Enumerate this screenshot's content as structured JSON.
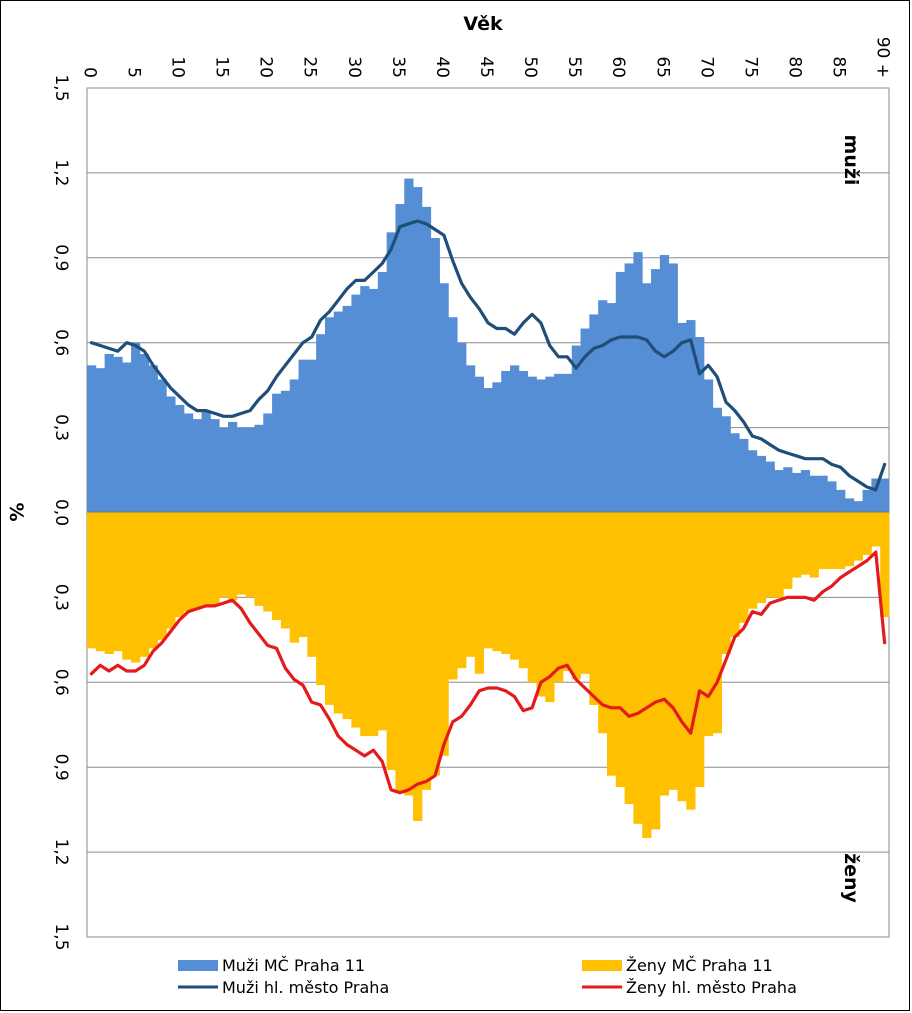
{
  "chart_data": {
    "type": "bar",
    "orientation": "population pyramid, rotated (age runs left to right along the top, percent downward)",
    "age_axis_title": "Věk",
    "value_axis_title": "%",
    "age_ticks": [
      "0",
      "5",
      "10",
      "15",
      "20",
      "25",
      "30",
      "35",
      "40",
      "45",
      "50",
      "55",
      "60",
      "65",
      "70",
      "75",
      "80",
      "85",
      "90 +"
    ],
    "value_ticks": [
      "1,5",
      "1,2",
      "0,9",
      "0,6",
      "0,3",
      "0,0",
      "0,3",
      "0,6",
      "0,9",
      "1,2",
      "1,5"
    ],
    "value_range": [
      -1.5,
      1.5
    ],
    "section_labels": {
      "upper": "muži",
      "lower": "ženy"
    },
    "grid": true,
    "legend_position": "bottom",
    "ages": [
      0,
      1,
      2,
      3,
      4,
      5,
      6,
      7,
      8,
      9,
      10,
      11,
      12,
      13,
      14,
      15,
      16,
      17,
      18,
      19,
      20,
      21,
      22,
      23,
      24,
      25,
      26,
      27,
      28,
      29,
      30,
      31,
      32,
      33,
      34,
      35,
      36,
      37,
      38,
      39,
      40,
      41,
      42,
      43,
      44,
      45,
      46,
      47,
      48,
      49,
      50,
      51,
      52,
      53,
      54,
      55,
      56,
      57,
      58,
      59,
      60,
      61,
      62,
      63,
      64,
      65,
      66,
      67,
      68,
      69,
      70,
      71,
      72,
      73,
      74,
      75,
      76,
      77,
      78,
      79,
      80,
      81,
      82,
      83,
      84,
      85,
      86,
      87,
      88,
      89,
      90
    ],
    "series": [
      {
        "name": "Muži MČ Praha 11",
        "kind": "bar",
        "color": "#558ED5",
        "values": [
          0.52,
          0.51,
          0.56,
          0.55,
          0.53,
          0.6,
          0.56,
          0.52,
          0.47,
          0.41,
          0.38,
          0.35,
          0.33,
          0.36,
          0.33,
          0.3,
          0.32,
          0.3,
          0.3,
          0.31,
          0.35,
          0.42,
          0.43,
          0.47,
          0.54,
          0.54,
          0.63,
          0.69,
          0.71,
          0.73,
          0.77,
          0.8,
          0.79,
          0.85,
          0.99,
          1.09,
          1.18,
          1.15,
          1.08,
          0.97,
          0.81,
          0.69,
          0.6,
          0.52,
          0.48,
          0.44,
          0.46,
          0.5,
          0.52,
          0.5,
          0.48,
          0.47,
          0.48,
          0.49,
          0.49,
          0.59,
          0.65,
          0.7,
          0.75,
          0.74,
          0.85,
          0.88,
          0.92,
          0.81,
          0.86,
          0.91,
          0.88,
          0.67,
          0.68,
          0.62,
          0.47,
          0.37,
          0.34,
          0.28,
          0.26,
          0.22,
          0.2,
          0.18,
          0.15,
          0.16,
          0.14,
          0.15,
          0.13,
          0.13,
          0.11,
          0.08,
          0.05,
          0.04,
          0.08,
          0.12,
          0.12
        ]
      },
      {
        "name": "Muži hl. město Praha",
        "kind": "line",
        "color": "#1F4E79",
        "values": [
          0.6,
          0.59,
          0.58,
          0.57,
          0.6,
          0.59,
          0.57,
          0.52,
          0.48,
          0.44,
          0.41,
          0.38,
          0.36,
          0.36,
          0.35,
          0.34,
          0.34,
          0.35,
          0.36,
          0.4,
          0.43,
          0.48,
          0.52,
          0.56,
          0.6,
          0.62,
          0.68,
          0.71,
          0.75,
          0.79,
          0.82,
          0.82,
          0.85,
          0.88,
          0.93,
          1.01,
          1.02,
          1.03,
          1.02,
          1.0,
          0.98,
          0.89,
          0.81,
          0.76,
          0.72,
          0.67,
          0.65,
          0.65,
          0.63,
          0.67,
          0.7,
          0.67,
          0.59,
          0.55,
          0.55,
          0.51,
          0.55,
          0.58,
          0.59,
          0.61,
          0.62,
          0.62,
          0.62,
          0.61,
          0.57,
          0.55,
          0.57,
          0.6,
          0.61,
          0.49,
          0.52,
          0.48,
          0.39,
          0.36,
          0.32,
          0.27,
          0.26,
          0.24,
          0.22,
          0.21,
          0.2,
          0.19,
          0.19,
          0.19,
          0.17,
          0.16,
          0.13,
          0.11,
          0.09,
          0.08,
          0.17
        ]
      },
      {
        "name": "Ženy MČ Praha 11",
        "kind": "bar",
        "color": "#FFC000",
        "values": [
          -0.48,
          -0.49,
          -0.5,
          -0.49,
          -0.52,
          -0.53,
          -0.51,
          -0.48,
          -0.45,
          -0.41,
          -0.37,
          -0.35,
          -0.34,
          -0.33,
          -0.33,
          -0.3,
          -0.31,
          -0.29,
          -0.3,
          -0.33,
          -0.35,
          -0.38,
          -0.41,
          -0.46,
          -0.44,
          -0.51,
          -0.61,
          -0.68,
          -0.71,
          -0.73,
          -0.76,
          -0.79,
          -0.79,
          -0.77,
          -0.91,
          -0.99,
          -1.0,
          -1.09,
          -0.98,
          -0.93,
          -0.86,
          -0.59,
          -0.55,
          -0.51,
          -0.57,
          -0.48,
          -0.49,
          -0.5,
          -0.52,
          -0.55,
          -0.6,
          -0.65,
          -0.67,
          -0.6,
          -0.56,
          -0.59,
          -0.57,
          -0.68,
          -0.78,
          -0.93,
          -0.97,
          -1.03,
          -1.1,
          -1.15,
          -1.12,
          -1.0,
          -0.98,
          -1.02,
          -1.05,
          -0.97,
          -0.79,
          -0.78,
          -0.5,
          -0.44,
          -0.39,
          -0.34,
          -0.32,
          -0.3,
          -0.3,
          -0.27,
          -0.23,
          -0.22,
          -0.23,
          -0.2,
          -0.2,
          -0.2,
          -0.19,
          -0.17,
          -0.15,
          -0.12,
          -0.37
        ]
      },
      {
        "name": "Ženy hl. město Praha",
        "kind": "line",
        "color": "#E41A1C",
        "values": [
          -0.57,
          -0.54,
          -0.56,
          -0.54,
          -0.56,
          -0.56,
          -0.54,
          -0.49,
          -0.46,
          -0.42,
          -0.38,
          -0.35,
          -0.34,
          -0.33,
          -0.33,
          -0.32,
          -0.31,
          -0.34,
          -0.39,
          -0.43,
          -0.47,
          -0.48,
          -0.55,
          -0.59,
          -0.61,
          -0.67,
          -0.68,
          -0.73,
          -0.79,
          -0.82,
          -0.84,
          -0.86,
          -0.84,
          -0.88,
          -0.98,
          -0.99,
          -0.98,
          -0.96,
          -0.95,
          -0.93,
          -0.82,
          -0.74,
          -0.72,
          -0.68,
          -0.63,
          -0.62,
          -0.62,
          -0.63,
          -0.65,
          -0.7,
          -0.69,
          -0.6,
          -0.58,
          -0.55,
          -0.54,
          -0.59,
          -0.62,
          -0.65,
          -0.68,
          -0.69,
          -0.69,
          -0.72,
          -0.71,
          -0.69,
          -0.67,
          -0.66,
          -0.69,
          -0.74,
          -0.78,
          -0.63,
          -0.65,
          -0.6,
          -0.52,
          -0.44,
          -0.41,
          -0.35,
          -0.36,
          -0.32,
          -0.31,
          -0.3,
          -0.3,
          -0.3,
          -0.31,
          -0.28,
          -0.26,
          -0.23,
          -0.21,
          -0.19,
          -0.17,
          -0.14,
          -0.46
        ]
      }
    ]
  }
}
